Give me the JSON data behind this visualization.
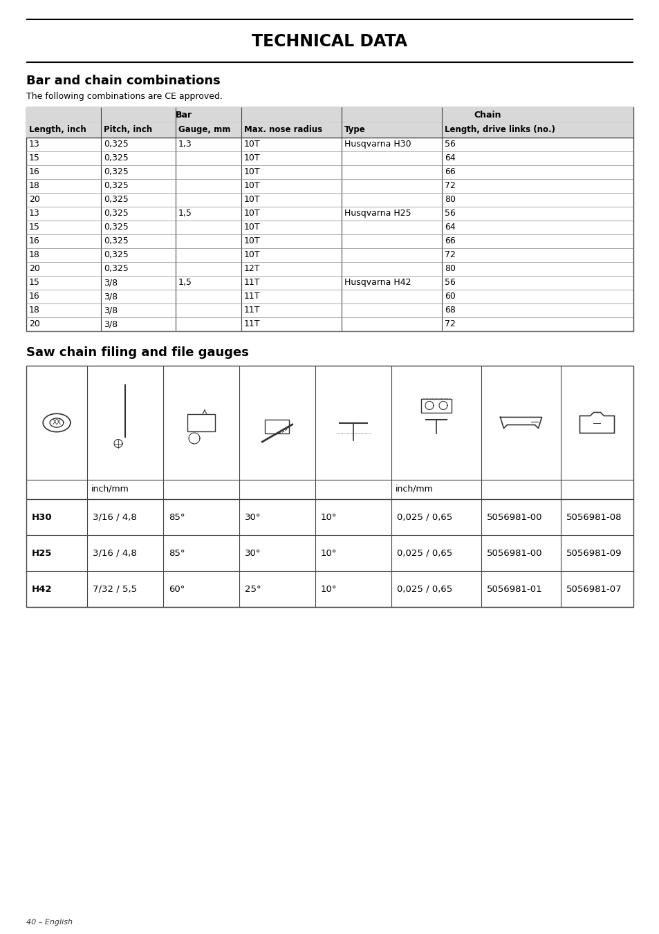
{
  "title": "TECHNICAL DATA",
  "section1_title": "Bar and chain combinations",
  "section1_subtitle": "The following combinations are CE approved.",
  "bar_header1": "Bar",
  "chain_header": "Chain",
  "col_headers": [
    "Length, inch",
    "Pitch, inch",
    "Gauge, mm",
    "Max. nose radius",
    "Type",
    "Length, drive links (no.)"
  ],
  "table1_rows": [
    [
      "13",
      "0,325",
      "1,3",
      "10T",
      "Husqvarna H30",
      "56"
    ],
    [
      "15",
      "0,325",
      "",
      "10T",
      "",
      "64"
    ],
    [
      "16",
      "0,325",
      "",
      "10T",
      "",
      "66"
    ],
    [
      "18",
      "0,325",
      "",
      "10T",
      "",
      "72"
    ],
    [
      "20",
      "0,325",
      "",
      "10T",
      "",
      "80"
    ],
    [
      "13",
      "0,325",
      "1,5",
      "10T",
      "Husqvarna H25",
      "56"
    ],
    [
      "15",
      "0,325",
      "",
      "10T",
      "",
      "64"
    ],
    [
      "16",
      "0,325",
      "",
      "10T",
      "",
      "66"
    ],
    [
      "18",
      "0,325",
      "",
      "10T",
      "",
      "72"
    ],
    [
      "20",
      "0,325",
      "",
      "12T",
      "",
      "80"
    ],
    [
      "15",
      "3/8",
      "1,5",
      "11T",
      "Husqvarna H42",
      "56"
    ],
    [
      "16",
      "3/8",
      "",
      "11T",
      "",
      "60"
    ],
    [
      "18",
      "3/8",
      "",
      "11T",
      "",
      "68"
    ],
    [
      "20",
      "3/8",
      "",
      "11T",
      "",
      "72"
    ]
  ],
  "section2_title": "Saw chain filing and file gauges",
  "filing_rows": [
    [
      "H30",
      "3/16 / 4,8",
      "85°",
      "30°",
      "10°",
      "0,025 / 0,65",
      "5056981‑00",
      "5056981‑08"
    ],
    [
      "H25",
      "3/16 / 4,8",
      "85°",
      "30°",
      "10°",
      "0,025 / 0,65",
      "5056981‑00",
      "5056981‑09"
    ],
    [
      "H42",
      "7/32 / 5,5",
      "60°",
      "25°",
      "10°",
      "0,025 / 0,65",
      "5056981-01",
      "5056981-07"
    ]
  ],
  "footer": "40 – English",
  "bg_color": "#ffffff"
}
